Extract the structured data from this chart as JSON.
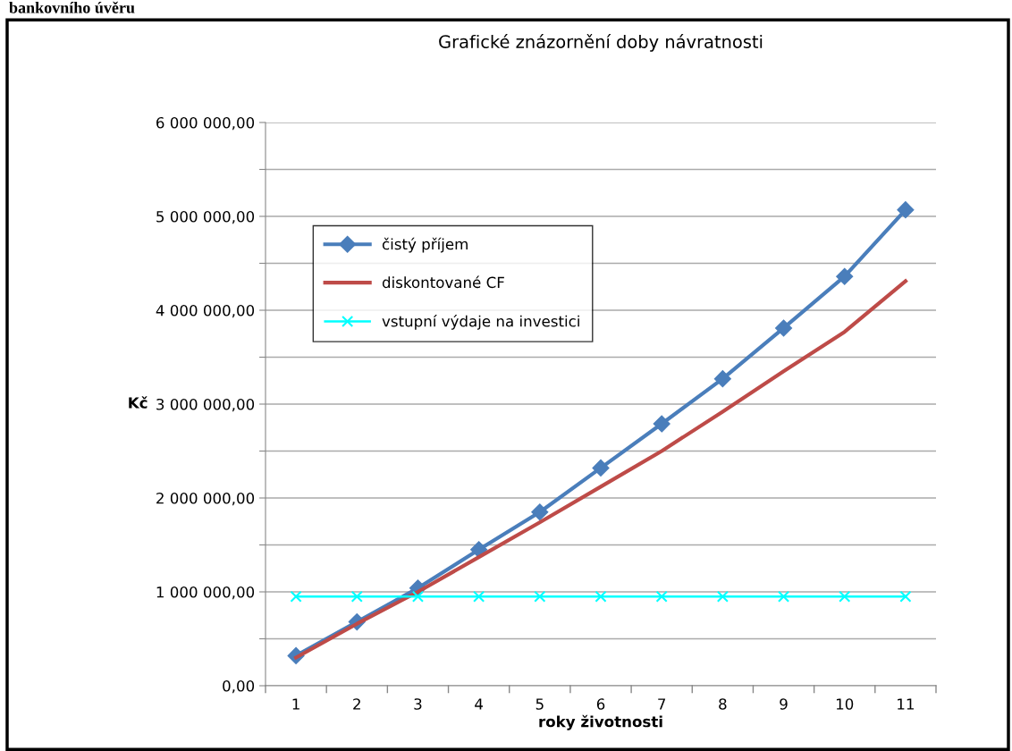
{
  "chart_data": {
    "type": "line",
    "title": "Grafické znázornění doby návratnosti",
    "xlabel": "roky životnosti",
    "ylabel": "Kč",
    "annotations": [
      "bankovního úvěru"
    ],
    "categories": [
      "1",
      "2",
      "3",
      "4",
      "5",
      "6",
      "7",
      "8",
      "9",
      "10",
      "11"
    ],
    "series": [
      {
        "name": "čistý příjem",
        "color": "#4a7ebb",
        "marker": "diamond",
        "values": [
          320000,
          680000,
          1040000,
          1450000,
          1850000,
          2320000,
          2790000,
          3270000,
          3810000,
          4360000,
          5070000
        ]
      },
      {
        "name": "diskontované CF",
        "color": "#be4b48",
        "marker": "none",
        "values": [
          300000,
          660000,
          1000000,
          1370000,
          1740000,
          2120000,
          2500000,
          2920000,
          3350000,
          3770000,
          4310000
        ]
      },
      {
        "name": "vstupní výdaje na investici",
        "color": "#00ffff",
        "marker": "cross",
        "values": [
          950000,
          950000,
          950000,
          950000,
          950000,
          950000,
          950000,
          950000,
          950000,
          950000,
          950000
        ]
      }
    ],
    "ylim": [
      0,
      6000000
    ],
    "yticks": [
      {
        "value": 0,
        "label": "0,00"
      },
      {
        "value": 500000,
        "label": null
      },
      {
        "value": 1000000,
        "label": "1 000 000,00"
      },
      {
        "value": 1500000,
        "label": null
      },
      {
        "value": 2000000,
        "label": "2 000 000,00"
      },
      {
        "value": 2500000,
        "label": null
      },
      {
        "value": 3000000,
        "label": "3 000 000,00"
      },
      {
        "value": 3500000,
        "label": null
      },
      {
        "value": 4000000,
        "label": "4 000 000,00"
      },
      {
        "value": 4500000,
        "label": null
      },
      {
        "value": 5000000,
        "label": "5 000 000,00"
      },
      {
        "value": 5500000,
        "label": null
      },
      {
        "value": 6000000,
        "label": "6 000 000,00"
      }
    ],
    "grid": "y",
    "legend": "top left",
    "line_style": "solid"
  }
}
